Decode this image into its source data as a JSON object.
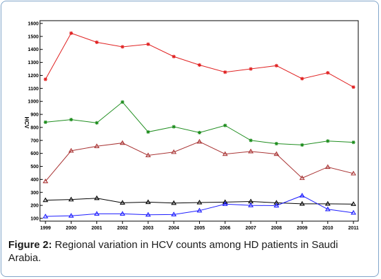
{
  "chart_data": {
    "type": "line",
    "title": "",
    "xlabel": "",
    "ylabel": "HCV",
    "x": [
      "1999",
      "2000",
      "2001",
      "2002",
      "2003",
      "2004",
      "2005",
      "2006",
      "2007",
      "2008",
      "2009",
      "2010",
      "2011"
    ],
    "yticks": [
      100,
      200,
      300,
      400,
      500,
      600,
      700,
      800,
      900,
      1000,
      1100,
      1200,
      1300,
      1400,
      1500,
      1600
    ],
    "ylim": [
      100,
      1600
    ],
    "grid": false,
    "series": [
      {
        "color": "#e02020",
        "marker": "star",
        "values": [
          1170,
          1525,
          1455,
          1420,
          1440,
          1345,
          1280,
          1225,
          1250,
          1275,
          1175,
          1220,
          1110
        ]
      },
      {
        "color": "#1c8c1c",
        "marker": "star",
        "values": [
          840,
          860,
          835,
          995,
          765,
          805,
          760,
          815,
          700,
          675,
          665,
          695,
          685
        ]
      },
      {
        "color": "#a83232",
        "marker": "triangle",
        "values": [
          385,
          620,
          655,
          680,
          585,
          610,
          690,
          595,
          615,
          595,
          410,
          495,
          445
        ]
      },
      {
        "color": "#000000",
        "marker": "triangle",
        "values": [
          240,
          245,
          255,
          220,
          225,
          218,
          222,
          225,
          230,
          220,
          212,
          212,
          210
        ]
      },
      {
        "color": "#1a1aff",
        "marker": "triangle",
        "values": [
          115,
          120,
          135,
          135,
          128,
          130,
          160,
          210,
          200,
          198,
          275,
          170,
          143
        ]
      }
    ]
  },
  "caption": {
    "label": "Figure 2:",
    "text": " Regional variation in HCV counts among HD patients in Saudi Arabia."
  }
}
